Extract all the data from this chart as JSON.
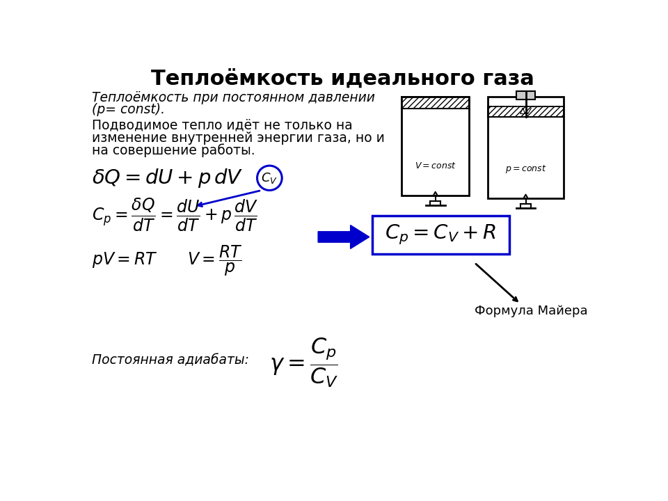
{
  "title": "Теплоёмкость идеального газа",
  "title_fontsize": 22,
  "bg_color": "#ffffff",
  "text_color": "#000000",
  "italic_text1": "Теплоёмкость при постоянном давлении",
  "italic_text2": "(p= const).",
  "normal_text_line1": "Подводимое тепло идёт не только на",
  "normal_text_line2": "изменение внутренней энергии газа, но и",
  "normal_text_line3": "на совершение работы.",
  "label_adiabat": "Постоянная адиабаты:",
  "label_mayer": "Формула Майера",
  "arrow_color": "#0000cc",
  "box_color": "#0000cc",
  "circle_color": "#0000cc"
}
